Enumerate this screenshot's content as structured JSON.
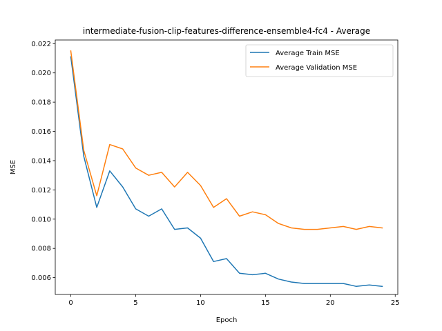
{
  "chart_data": {
    "type": "line",
    "title": "intermediate-fusion-clip-features-difference-ensemble4-fc4 - Average",
    "xlabel": "Epoch",
    "ylabel": "MSE",
    "xlim": [
      -1.2,
      25.2
    ],
    "ylim": [
      0.00485,
      0.02225
    ],
    "xticks": [
      0,
      5,
      10,
      15,
      20,
      25
    ],
    "yticks": [
      0.006,
      0.008,
      0.01,
      0.012,
      0.014,
      0.016,
      0.018,
      0.02,
      0.022
    ],
    "xtick_labels": [
      "0",
      "5",
      "10",
      "15",
      "20",
      "25"
    ],
    "ytick_labels": [
      "0.006",
      "0.008",
      "0.010",
      "0.012",
      "0.014",
      "0.016",
      "0.018",
      "0.020",
      "0.022"
    ],
    "grid": false,
    "legend_position": "top-right",
    "x": [
      0,
      1,
      2,
      3,
      4,
      5,
      6,
      7,
      8,
      9,
      10,
      11,
      12,
      13,
      14,
      15,
      16,
      17,
      18,
      19,
      20,
      21,
      22,
      23,
      24
    ],
    "series": [
      {
        "name": "Average Train MSE",
        "color": "#1f77b4",
        "values": [
          0.0211,
          0.0143,
          0.0108,
          0.0133,
          0.0122,
          0.0107,
          0.0102,
          0.0107,
          0.0093,
          0.0094,
          0.0087,
          0.0071,
          0.0073,
          0.0063,
          0.0062,
          0.0063,
          0.0059,
          0.0057,
          0.0056,
          0.0056,
          0.0056,
          0.0056,
          0.0054,
          0.0055,
          0.0054
        ]
      },
      {
        "name": "Average Validation MSE",
        "color": "#ff7f0e",
        "values": [
          0.0215,
          0.0147,
          0.0116,
          0.0151,
          0.0148,
          0.0135,
          0.013,
          0.0132,
          0.0122,
          0.0132,
          0.0123,
          0.0108,
          0.0114,
          0.0102,
          0.0105,
          0.0103,
          0.0097,
          0.0094,
          0.0093,
          0.0093,
          0.0094,
          0.0095,
          0.0093,
          0.0095,
          0.0094
        ]
      }
    ]
  }
}
